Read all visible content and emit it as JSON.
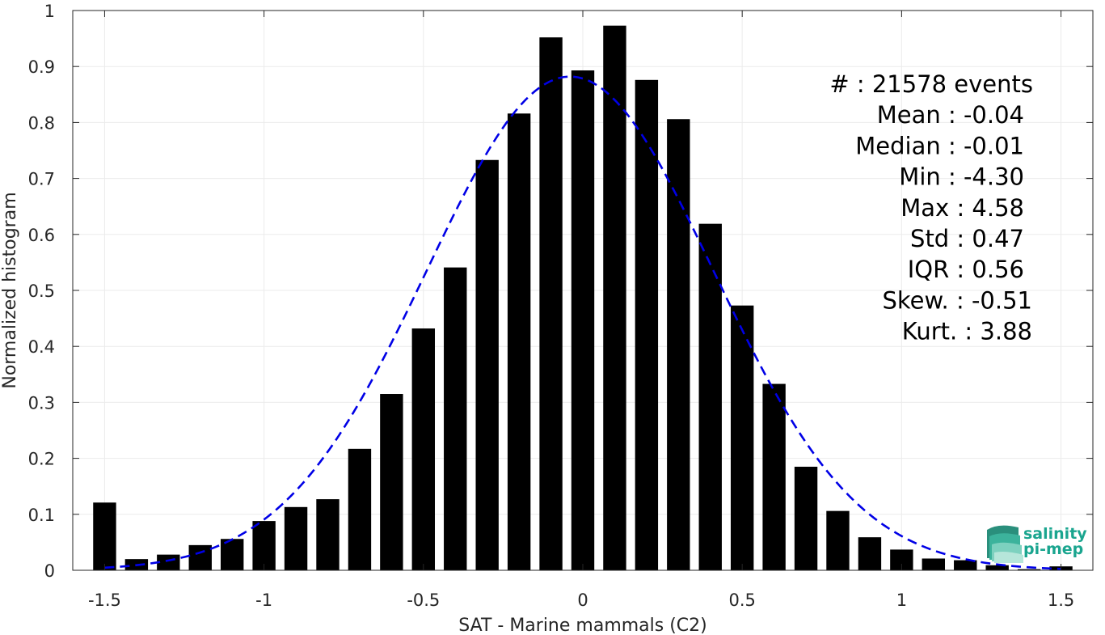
{
  "chart_data": {
    "type": "bar",
    "title": "",
    "xlabel": "SAT - Marine mammals (C2)",
    "ylabel": "Normalized histogram",
    "xlim": [
      -1.6,
      1.6
    ],
    "ylim": [
      0,
      1
    ],
    "grid": true,
    "x_ticks": [
      "-1.5",
      "-1",
      "-0.5",
      "0",
      "0.5",
      "1",
      "1.5"
    ],
    "x_tick_values": [
      -1.5,
      -1,
      -0.5,
      0,
      0.5,
      1,
      1.5
    ],
    "y_ticks": [
      "0",
      "0.1",
      "0.2",
      "0.3",
      "0.4",
      "0.5",
      "0.6",
      "0.7",
      "0.8",
      "0.9",
      "1"
    ],
    "y_tick_values": [
      0,
      0.1,
      0.2,
      0.3,
      0.4,
      0.5,
      0.6,
      0.7,
      0.8,
      0.9,
      1
    ],
    "bin_width": 0.1,
    "bar_color": "#000000",
    "bins": {
      "x": [
        -1.5,
        -1.4,
        -1.3,
        -1.2,
        -1.1,
        -1.0,
        -0.9,
        -0.8,
        -0.7,
        -0.6,
        -0.5,
        -0.4,
        -0.3,
        -0.2,
        -0.1,
        0.0,
        0.1,
        0.2,
        0.3,
        0.4,
        0.5,
        0.6,
        0.7,
        0.8,
        0.9,
        1.0,
        1.1,
        1.2,
        1.3,
        1.4,
        1.5
      ],
      "values": [
        0.121,
        0.02,
        0.028,
        0.045,
        0.056,
        0.088,
        0.113,
        0.127,
        0.217,
        0.315,
        0.432,
        0.541,
        0.733,
        0.816,
        0.952,
        0.893,
        0.973,
        0.876,
        0.806,
        0.619,
        0.473,
        0.333,
        0.185,
        0.106,
        0.059,
        0.037,
        0.021,
        0.018,
        0.009,
        0.002,
        0.007
      ]
    },
    "fit_curve": {
      "type": "normal",
      "style": "dashed",
      "color": "#0000e6",
      "mean": -0.04,
      "std": 0.45,
      "peak": 0.882,
      "x_range": [
        -1.5,
        1.5
      ]
    },
    "stats": [
      "#  : 21578 events",
      "Mean : -0.04",
      "Median : -0.01",
      "Min : -4.30",
      "Max : 4.58",
      "Std : 0.47",
      "IQR : 0.56",
      "Skew. : -0.51",
      "Kurt. : 3.88"
    ]
  },
  "logo": {
    "line1": "salinity",
    "line2": "pi-mep",
    "color": "#1aa58f"
  }
}
